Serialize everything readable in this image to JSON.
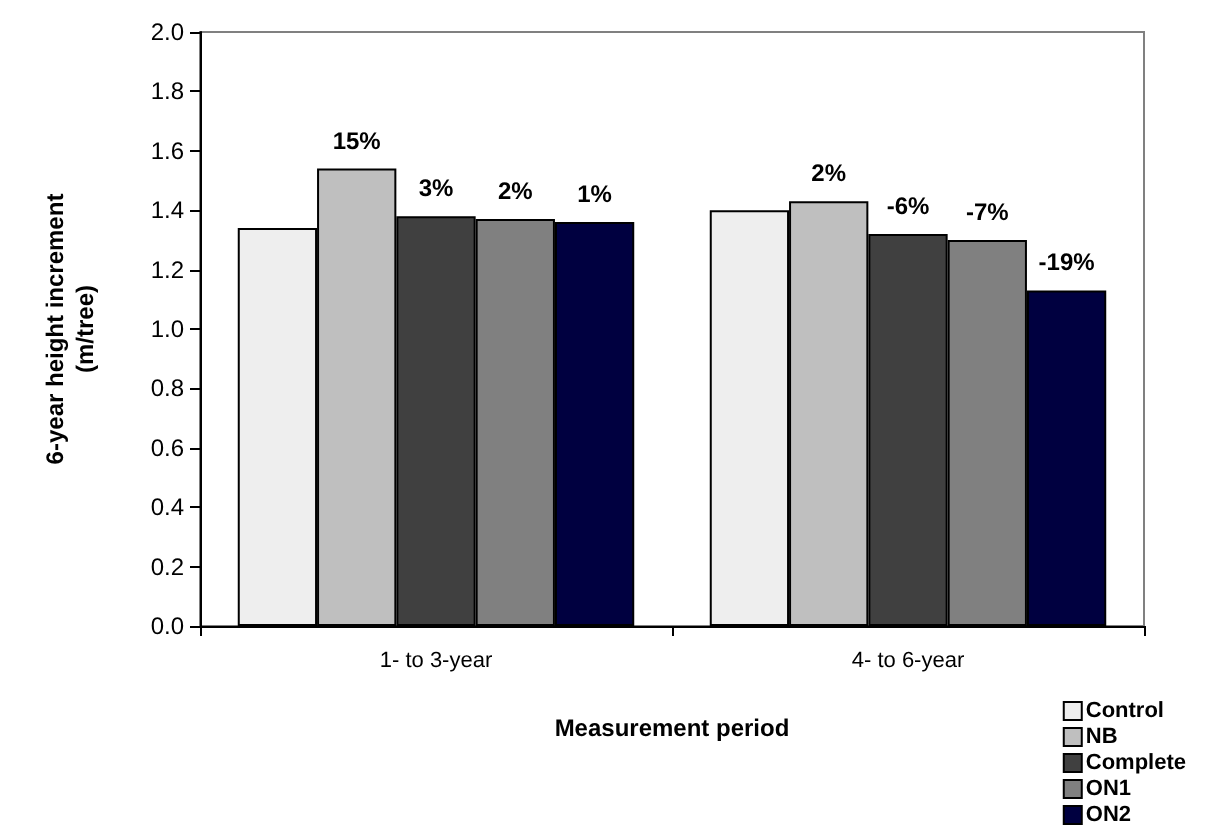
{
  "chart_data": {
    "type": "bar",
    "xlabel": "Measurement period",
    "ylabel": "6-year height increment\n(m/tree)",
    "categories": [
      "1- to 3-year",
      "4- to 6-year"
    ],
    "series": [
      {
        "name": "Control",
        "color": "#eeeeee",
        "values": [
          1.34,
          1.4
        ]
      },
      {
        "name": "NB",
        "color": "#bfbfbf",
        "values": [
          1.54,
          1.43
        ]
      },
      {
        "name": "Complete",
        "color": "#404040",
        "values": [
          1.38,
          1.32
        ]
      },
      {
        "name": "ON1",
        "color": "#808080",
        "values": [
          1.37,
          1.3
        ]
      },
      {
        "name": "ON2",
        "color": "#000040",
        "values": [
          1.36,
          1.13
        ]
      }
    ],
    "annotations": [
      "15%",
      "3%",
      "2%",
      "1%",
      "2%",
      "-6%",
      "-7%",
      "-19%"
    ],
    "ylim": [
      0,
      2
    ],
    "yticks": [
      {
        "value": 0,
        "label": "0.0"
      },
      0.2,
      0.4,
      0.6,
      0.8,
      {
        "value": 1,
        "label": "1.0"
      },
      1.2,
      1.4,
      1.6,
      1.8,
      {
        "value": 2,
        "label": "2.0"
      }
    ],
    "grid": false,
    "legend": "bottom right"
  }
}
